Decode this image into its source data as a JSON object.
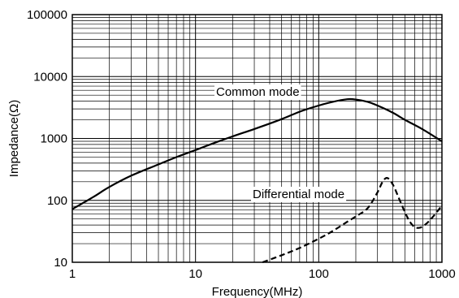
{
  "chart_data": {
    "type": "line",
    "title": "",
    "xlabel": "Frequency(MHz)",
    "ylabel": "Impedance(Ω)",
    "x_scale": "log",
    "y_scale": "log",
    "xlim": [
      1,
      1000
    ],
    "ylim": [
      10,
      100000
    ],
    "grid": true,
    "x_ticks": [
      {
        "value": 1,
        "label": "1"
      },
      {
        "value": 10,
        "label": "10"
      },
      {
        "value": 100,
        "label": "100"
      },
      {
        "value": 1000,
        "label": "1000"
      }
    ],
    "y_ticks": [
      {
        "value": 10,
        "label": "10"
      },
      {
        "value": 100,
        "label": "100"
      },
      {
        "value": 1000,
        "label": "1000"
      },
      {
        "value": 10000,
        "label": "10000"
      },
      {
        "value": 100000,
        "label": "100000"
      }
    ],
    "series": [
      {
        "name": "Common mode",
        "style": "solid",
        "color": "#000000",
        "x": [
          1,
          1.5,
          2,
          3,
          5,
          7,
          10,
          15,
          20,
          30,
          50,
          70,
          100,
          130,
          170,
          200,
          250,
          300,
          400,
          500,
          700,
          1000
        ],
        "y": [
          72,
          115,
          165,
          250,
          380,
          500,
          650,
          880,
          1080,
          1420,
          2050,
          2700,
          3400,
          3900,
          4300,
          4250,
          3900,
          3400,
          2600,
          2000,
          1400,
          900
        ]
      },
      {
        "name": "Differential mode",
        "style": "dashed",
        "color": "#000000",
        "x": [
          35,
          50,
          70,
          100,
          130,
          170,
          200,
          250,
          300,
          330,
          360,
          400,
          450,
          500,
          550,
          600,
          650,
          700,
          800,
          1000
        ],
        "y": [
          10,
          13,
          17,
          24,
          32,
          45,
          55,
          75,
          135,
          200,
          230,
          180,
          105,
          65,
          45,
          37,
          36,
          38,
          48,
          82
        ]
      }
    ],
    "annotations": [
      {
        "text": "Common mode",
        "series": "Common mode"
      },
      {
        "text": "Differential mode",
        "series": "Differential mode"
      }
    ]
  }
}
